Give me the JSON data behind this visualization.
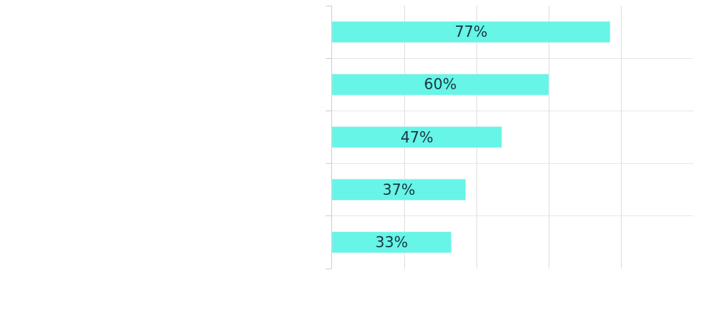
{
  "chart_data": {
    "type": "bar",
    "orientation": "horizontal",
    "categories": [
      null,
      null,
      null,
      null,
      null
    ],
    "values": [
      77,
      60,
      47,
      37,
      33
    ],
    "value_labels": [
      "77%",
      "60%",
      "47%",
      "37%",
      "33%"
    ],
    "color": "#66f5e6",
    "xlim": [
      0,
      100
    ],
    "grid": true,
    "tick_labels": false
  }
}
